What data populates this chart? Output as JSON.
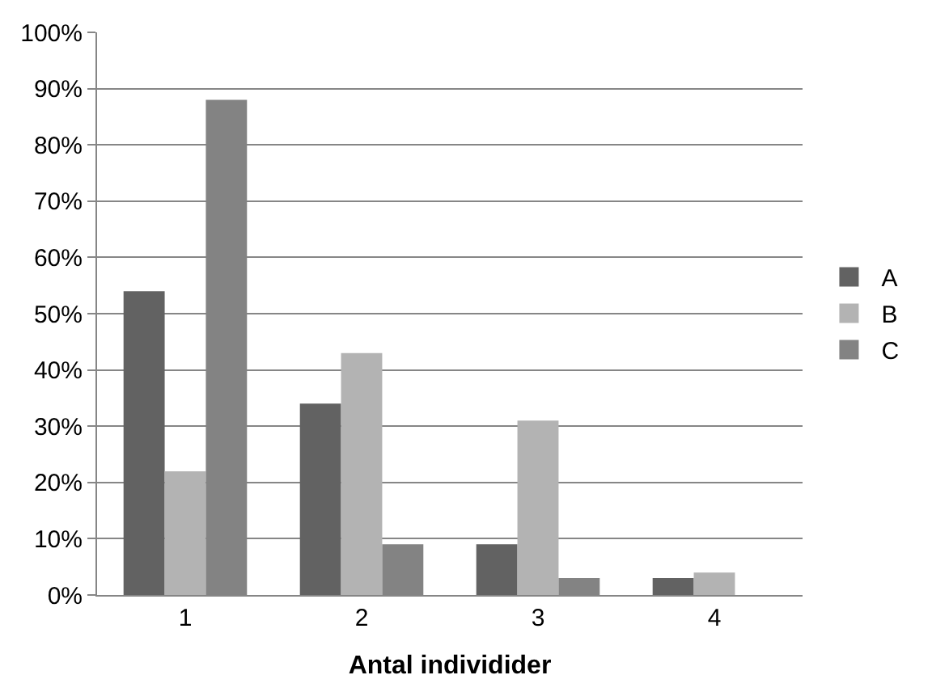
{
  "chart_data": {
    "type": "bar",
    "xlabel": "Antal individider",
    "categories": [
      "1",
      "2",
      "3",
      "4"
    ],
    "series": [
      {
        "name": "A",
        "color": "#626262",
        "values": [
          54,
          34,
          9,
          3
        ]
      },
      {
        "name": "B",
        "color": "#b3b3b3",
        "values": [
          22,
          43,
          31,
          4
        ]
      },
      {
        "name": "C",
        "color": "#838383",
        "values": [
          88,
          9,
          3,
          0
        ]
      }
    ],
    "ylim": [
      0,
      100
    ],
    "yticks": [
      {
        "value": 0,
        "label": "0%"
      },
      {
        "value": 10,
        "label": "10%"
      },
      {
        "value": 20,
        "label": "20%"
      },
      {
        "value": 30,
        "label": "30%"
      },
      {
        "value": 40,
        "label": "40%"
      },
      {
        "value": 50,
        "label": "50%"
      },
      {
        "value": 60,
        "label": "60%"
      },
      {
        "value": 70,
        "label": "70%"
      },
      {
        "value": 80,
        "label": "80%"
      },
      {
        "value": 90,
        "label": "90%"
      },
      {
        "value": 100,
        "label": "100%"
      }
    ],
    "grid": "y",
    "legend": "right"
  }
}
